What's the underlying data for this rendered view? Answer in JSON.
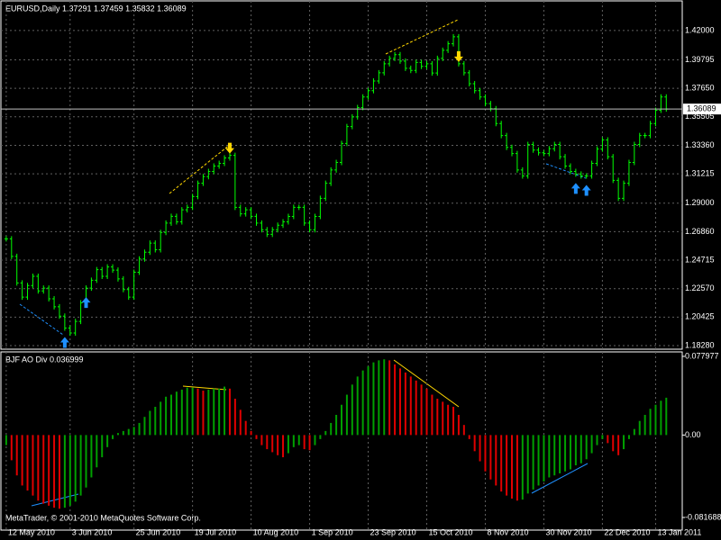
{
  "chart_data": [
    {
      "type": "ohlc",
      "title": "EURUSD,Daily  1.37291 1.37459 1.35832 1.36089",
      "color": "#00ff00",
      "grid": true,
      "xlim": [
        -1,
        127
      ],
      "xticks": [
        {
          "value": 0,
          "label": "12 May 2010"
        },
        {
          "value": 12,
          "label": "3 Jun 2010"
        },
        {
          "value": 24,
          "label": "25 Jun 2010"
        },
        {
          "value": 35,
          "label": "19 Jul 2010"
        },
        {
          "value": 46,
          "label": "10 Aug 2010"
        },
        {
          "value": 57,
          "label": "1 Sep 2010"
        },
        {
          "value": 68,
          "label": "23 Sep 2010"
        },
        {
          "value": 79,
          "label": "15 Oct 2010"
        },
        {
          "value": 90,
          "label": "8 Nov 2010"
        },
        {
          "value": 101,
          "label": "30 Nov 2010"
        },
        {
          "value": 112,
          "label": "22 Dec 2010"
        },
        {
          "value": 122,
          "label": "13 Jan 2011"
        }
      ],
      "ylim": [
        1.1801,
        1.4423
      ],
      "yticks": [
        {
          "value": 1.42,
          "label": "1.42000"
        },
        1.39795,
        {
          "value": 1.3765,
          "label": "1.37650"
        },
        1.35505,
        {
          "value": 1.3336,
          "label": "1.33360"
        },
        1.31215,
        {
          "value": 1.29,
          "label": "1.29000"
        },
        {
          "value": 1.2686,
          "label": "1.26860"
        },
        1.24715,
        {
          "value": 1.2257,
          "label": "1.22570"
        },
        1.20425,
        {
          "value": 1.1828,
          "label": "1.18280"
        }
      ],
      "last_price": 1.36089,
      "values": [
        1.2632,
        1.25,
        1.23,
        1.2193,
        1.228,
        1.235,
        1.224,
        1.2261,
        1.218,
        1.212,
        1.205,
        1.196,
        1.1923,
        1.201,
        1.215,
        1.2261,
        1.232,
        1.24,
        1.235,
        1.242,
        1.2396,
        1.233,
        1.225,
        1.2193,
        1.238,
        1.248,
        1.2531,
        1.26,
        1.255,
        1.268,
        1.275,
        1.2801,
        1.276,
        1.285,
        1.2869,
        1.295,
        1.305,
        1.31,
        1.3139,
        1.318,
        1.32,
        1.3241,
        1.326,
        1.2869,
        1.282,
        1.285,
        1.2801,
        1.275,
        1.27,
        1.2666,
        1.27,
        1.2734,
        1.276,
        1.28,
        1.2869,
        1.2869,
        1.275,
        1.27,
        1.28,
        1.2937,
        1.305,
        1.315,
        1.3207,
        1.335,
        1.3477,
        1.355,
        1.362,
        1.37,
        1.3747,
        1.382,
        1.3882,
        1.395,
        1.399,
        1.4018,
        1.397,
        1.3916,
        1.39,
        1.396,
        1.393,
        1.395,
        1.388,
        1.399,
        1.4051,
        1.41,
        1.4153,
        1.395,
        1.3882,
        1.38,
        1.3747,
        1.37,
        1.365,
        1.3612,
        1.35,
        1.3409,
        1.332,
        1.3274,
        1.315,
        1.3105,
        1.3342,
        1.33,
        1.328,
        1.3274,
        1.331,
        1.3342,
        1.325,
        1.318,
        1.3139,
        1.312,
        1.3105,
        1.3105,
        1.32,
        1.3308,
        1.3376,
        1.325,
        1.3072,
        1.2937,
        1.305,
        1.3207,
        1.3342,
        1.3409,
        1.3409,
        1.35,
        1.36,
        1.37,
        1.3609
      ],
      "buy_signals": [
        11,
        15,
        107,
        109
      ],
      "sell_signals": [
        42,
        85
      ],
      "buy_color": "#1e90ff",
      "sell_color": "#ffd700"
    },
    {
      "type": "histogram",
      "title": "BJF AO Div 0.036999",
      "footer": "MetaTrader, © 2001-2010 MetaQuotes Software Corp.",
      "up_color": "#00a000",
      "down_color": "#e00000",
      "xlim": [
        -1,
        127
      ],
      "ylim": [
        -0.0942,
        0.0824
      ],
      "yticks": [
        0.077977,
        {
          "value": 0,
          "label": "0.00"
        },
        -0.081688
      ],
      "values": [
        -0.01,
        -0.025,
        -0.04,
        -0.05,
        -0.055,
        -0.06,
        -0.065,
        -0.068,
        -0.07,
        -0.072,
        -0.073,
        -0.072,
        -0.07,
        -0.066,
        -0.06,
        -0.052,
        -0.042,
        -0.032,
        -0.022,
        -0.012,
        -0.004,
        0.002,
        0.004,
        0.006,
        0.008,
        0.012,
        0.018,
        0.024,
        0.028,
        0.033,
        0.038,
        0.04,
        0.043,
        0.045,
        0.047,
        0.047,
        0.046,
        0.044,
        0.045,
        0.046,
        0.046,
        0.048,
        0.046,
        0.036,
        0.025,
        0.014,
        0.004,
        -0.004,
        -0.01,
        -0.014,
        -0.017,
        -0.02,
        -0.022,
        -0.018,
        -0.012,
        -0.01,
        -0.014,
        -0.015,
        -0.01,
        -0.004,
        0.004,
        0.012,
        0.02,
        0.03,
        0.04,
        0.05,
        0.058,
        0.064,
        0.068,
        0.072,
        0.074,
        0.075,
        0.074,
        0.07,
        0.066,
        0.062,
        0.058,
        0.054,
        0.05,
        0.046,
        0.04,
        0.036,
        0.033,
        0.03,
        0.028,
        0.02,
        0.01,
        -0.004,
        -0.016,
        -0.026,
        -0.036,
        -0.044,
        -0.05,
        -0.056,
        -0.06,
        -0.063,
        -0.065,
        -0.064,
        -0.058,
        -0.054,
        -0.05,
        -0.046,
        -0.042,
        -0.04,
        -0.038,
        -0.036,
        -0.034,
        -0.03,
        -0.028,
        -0.024,
        -0.018,
        -0.01,
        -0.004,
        -0.008,
        -0.016,
        -0.02,
        -0.014,
        -0.004,
        0.006,
        0.014,
        0.02,
        0.026,
        0.03,
        0.034,
        0.037
      ]
    }
  ]
}
